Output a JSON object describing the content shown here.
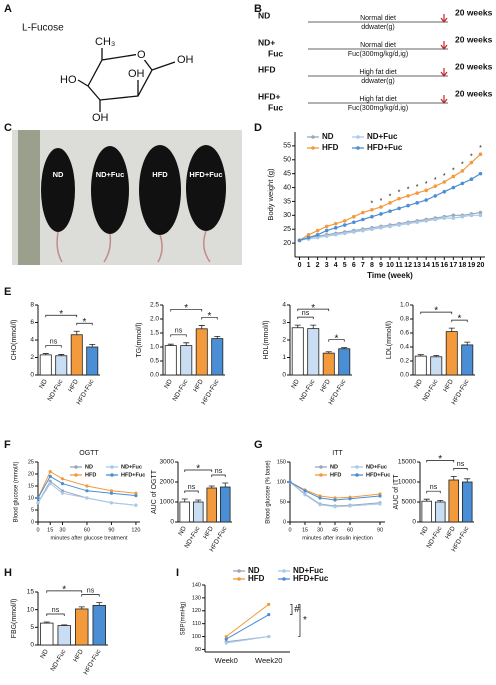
{
  "panel_labels": [
    "A",
    "B",
    "C",
    "D",
    "E",
    "F",
    "G",
    "H",
    "I"
  ],
  "panel_a": {
    "title": "L-Fucose",
    "atoms": [
      "CH₃",
      "O",
      "OH",
      "HO",
      "OH",
      "OH"
    ]
  },
  "panel_b": {
    "rows": [
      {
        "group": [
          "ND"
        ],
        "diet": "Normal diet",
        "treatment": "ddwater(g)",
        "duration": "20 weeks"
      },
      {
        "group": [
          "ND+",
          "Fuc"
        ],
        "diet": "Normal diet",
        "treatment": "Fuc(300mg/kg/d,ig)",
        "duration": "20 weeks"
      },
      {
        "group": [
          "HFD"
        ],
        "diet": "High fat diet",
        "treatment": "ddwater(g)",
        "duration": "20 weeks"
      },
      {
        "group": [
          "HFD+",
          "Fuc"
        ],
        "diet": "High fat diet",
        "treatment": "Fuc(300mg/kg/d,ig)",
        "duration": "20 weeks"
      }
    ]
  },
  "panel_c": {
    "labels": [
      "ND",
      "ND+Fuc",
      "HFD",
      "HFD+Fuc"
    ]
  },
  "chart_data": [
    {
      "type": "line",
      "xlabel": "Time (week)",
      "ylabel": "Body weight (g)",
      "legend": "top-left",
      "x": [
        0,
        1,
        2,
        3,
        4,
        5,
        6,
        7,
        8,
        9,
        10,
        11,
        12,
        13,
        14,
        15,
        16,
        17,
        18,
        19,
        20
      ],
      "xlim": [
        -0.5,
        20.5
      ],
      "xticks": [
        0,
        1,
        2,
        3,
        4,
        5,
        6,
        7,
        8,
        9,
        10,
        11,
        12,
        13,
        14,
        15,
        16,
        17,
        18,
        19,
        20
      ],
      "ylim": [
        15,
        60
      ],
      "yticks": [
        20,
        25,
        30,
        35,
        40,
        45,
        50,
        55
      ],
      "series": [
        {
          "name": "ND",
          "color": "#9aa7bb",
          "values": [
            21,
            22,
            22.5,
            23,
            23.5,
            24,
            24.5,
            25,
            25.5,
            26,
            26.5,
            27,
            27.5,
            28,
            28.5,
            29,
            29.5,
            30,
            30,
            30.5,
            31
          ]
        },
        {
          "name": "ND+Fuc",
          "color": "#a9c9ea",
          "values": [
            21,
            21.5,
            22,
            22.5,
            23,
            23.5,
            24,
            24.5,
            25,
            25.5,
            26,
            26.5,
            27,
            27.5,
            28,
            28.5,
            29,
            29,
            29.5,
            30,
            30
          ]
        },
        {
          "name": "HFD",
          "color": "#f39a3c",
          "values": [
            21,
            23,
            24.5,
            26,
            27,
            28,
            29.5,
            31,
            32,
            33,
            34.5,
            36,
            37,
            38,
            39,
            40.5,
            42,
            44,
            46,
            49,
            52
          ]
        },
        {
          "name": "HFD+Fuc",
          "color": "#4a8fd6",
          "values": [
            21,
            22,
            23,
            24.5,
            25.5,
            26.5,
            27.5,
            28.5,
            29.5,
            30.5,
            31.5,
            32.5,
            33.5,
            34.5,
            35.5,
            37,
            38.5,
            40,
            41.5,
            43,
            45
          ]
        }
      ],
      "annotations": [
        {
          "text": "*",
          "x": 8
        },
        {
          "text": "*",
          "x": 9
        },
        {
          "text": "*",
          "x": 10
        },
        {
          "text": "*",
          "x": 11
        },
        {
          "text": "*",
          "x": 12
        },
        {
          "text": "*",
          "x": 13
        },
        {
          "text": "*",
          "x": 14
        },
        {
          "text": "*",
          "x": 15
        },
        {
          "text": "*",
          "x": 16
        },
        {
          "text": "*",
          "x": 17
        },
        {
          "text": "*",
          "x": 18
        },
        {
          "text": "*",
          "x": 19
        },
        {
          "text": "*",
          "x": 20
        }
      ]
    },
    {
      "type": "bar",
      "ylabel": "CHO(mmol/l)",
      "categories": [
        "ND",
        "ND+Fuc",
        "HFD",
        "HFD+Fuc"
      ],
      "values": [
        2.3,
        2.2,
        4.6,
        3.2
      ],
      "errors": [
        0.15,
        0.15,
        0.4,
        0.3
      ],
      "colors": [
        "#ffffff",
        "#c9ddf3",
        "#f39a3c",
        "#4a8fd6"
      ],
      "ylim": [
        0,
        8
      ],
      "yticks": [
        0,
        2,
        4,
        6,
        8
      ],
      "comparisons": [
        {
          "label": "ns",
          "from": 0,
          "to": 1
        },
        {
          "label": "*",
          "from": 0,
          "to": 2
        },
        {
          "label": "*",
          "from": 2,
          "to": 3
        }
      ]
    },
    {
      "type": "bar",
      "ylabel": "TG(mmol/l)",
      "categories": [
        "ND",
        "ND+Fuc",
        "HFD",
        "HFD+Fuc"
      ],
      "values": [
        1.05,
        1.05,
        1.65,
        1.3
      ],
      "errors": [
        0.05,
        0.1,
        0.12,
        0.08
      ],
      "colors": [
        "#ffffff",
        "#c9ddf3",
        "#f39a3c",
        "#4a8fd6"
      ],
      "ylim": [
        0,
        2.5
      ],
      "yticks": [
        {
          "value": 0,
          "label": "0.0"
        },
        0.5,
        {
          "value": 1,
          "label": "1.0"
        },
        1.5,
        {
          "value": 2,
          "label": "2.0"
        },
        2.5
      ],
      "comparisons": [
        {
          "label": "ns",
          "from": 0,
          "to": 1
        },
        {
          "label": "*",
          "from": 0,
          "to": 2
        },
        {
          "label": "*",
          "from": 2,
          "to": 3
        }
      ]
    },
    {
      "type": "bar",
      "ylabel": "HDL(mmol/l)",
      "categories": [
        "ND",
        "ND+Fuc",
        "HFD",
        "HFD+Fuc"
      ],
      "values": [
        2.7,
        2.65,
        1.25,
        1.5
      ],
      "errors": [
        0.15,
        0.2,
        0.08,
        0.06
      ],
      "colors": [
        "#ffffff",
        "#c9ddf3",
        "#f39a3c",
        "#4a8fd6"
      ],
      "ylim": [
        0,
        4
      ],
      "yticks": [
        0,
        1,
        2,
        3,
        4
      ],
      "comparisons": [
        {
          "label": "ns",
          "from": 0,
          "to": 1
        },
        {
          "label": "*",
          "from": 0,
          "to": 2
        },
        {
          "label": "*",
          "from": 2,
          "to": 3
        }
      ]
    },
    {
      "type": "bar",
      "ylabel": "LDL(mmol/l)",
      "categories": [
        "ND",
        "ND+Fuc",
        "HFD",
        "HFD+Fuc"
      ],
      "values": [
        0.27,
        0.26,
        0.62,
        0.43
      ],
      "errors": [
        0.02,
        0.02,
        0.05,
        0.04
      ],
      "colors": [
        "#ffffff",
        "#c9ddf3",
        "#f39a3c",
        "#4a8fd6"
      ],
      "ylim": [
        0,
        1
      ],
      "yticks": [
        {
          "value": 0,
          "label": "0.0"
        },
        0.2,
        0.4,
        0.6,
        0.8,
        {
          "value": 1,
          "label": "1.0"
        }
      ],
      "comparisons": [
        {
          "label": "*",
          "from": 0,
          "to": 2
        },
        {
          "label": "*",
          "from": 2,
          "to": 3
        }
      ]
    },
    {
      "type": "line",
      "title": "OGTT",
      "xlabel": "minutes after glucose treatment",
      "ylabel": "Blood glucose (mmol/l)",
      "legend": "top-right",
      "x": [
        0,
        15,
        30,
        60,
        90,
        120
      ],
      "xlim": [
        0,
        125
      ],
      "xticks": [
        0,
        15,
        30,
        60,
        90,
        120
      ],
      "ylim": [
        0,
        25
      ],
      "yticks": [
        0,
        5,
        10,
        15,
        20,
        25
      ],
      "series": [
        {
          "name": "ND",
          "color": "#9aa7bb",
          "values": [
            8,
            17,
            13,
            10,
            8,
            7
          ]
        },
        {
          "name": "ND+Fuc",
          "color": "#a9c9ea",
          "values": [
            8,
            16,
            12,
            10,
            8,
            7
          ]
        },
        {
          "name": "HFD",
          "color": "#f39a3c",
          "values": [
            10,
            21,
            18,
            15,
            13,
            12
          ]
        },
        {
          "name": "HFD+Fuc",
          "color": "#4a8fd6",
          "values": [
            10,
            19,
            16,
            13,
            12,
            11
          ]
        }
      ]
    },
    {
      "type": "bar",
      "ylabel": "AUC of OGTT",
      "categories": [
        "ND",
        "ND+Fuc",
        "HFD",
        "HFD+Fuc"
      ],
      "values": [
        1000,
        1000,
        1700,
        1750
      ],
      "errors": [
        150,
        100,
        100,
        200
      ],
      "colors": [
        "#ffffff",
        "#c9ddf3",
        "#f39a3c",
        "#4a8fd6"
      ],
      "ylim": [
        0,
        3000
      ],
      "yticks": [
        0,
        1000,
        2000,
        3000
      ],
      "comparisons": [
        {
          "label": "ns",
          "from": 0,
          "to": 1
        },
        {
          "label": "*",
          "from": 0,
          "to": 2
        },
        {
          "label": "ns",
          "from": 2,
          "to": 3
        }
      ]
    },
    {
      "type": "line",
      "title": "ITT",
      "xlabel": "minutes after insulin injection",
      "ylabel": "Blood glucose (% base)",
      "legend": "top-right",
      "x": [
        0,
        15,
        30,
        45,
        60,
        90
      ],
      "xlim": [
        0,
        95
      ],
      "xticks": [
        0,
        15,
        30,
        45,
        60,
        90
      ],
      "ylim": [
        0,
        150
      ],
      "yticks": [
        0,
        50,
        100,
        150
      ],
      "series": [
        {
          "name": "ND",
          "color": "#9aa7bb",
          "values": [
            100,
            70,
            45,
            40,
            42,
            48
          ]
        },
        {
          "name": "ND+Fuc",
          "color": "#a9c9ea",
          "values": [
            100,
            68,
            43,
            38,
            40,
            45
          ]
        },
        {
          "name": "HFD",
          "color": "#f39a3c",
          "values": [
            100,
            80,
            65,
            60,
            62,
            70
          ]
        },
        {
          "name": "HFD+Fuc",
          "color": "#4a8fd6",
          "values": [
            100,
            78,
            60,
            55,
            58,
            65
          ]
        }
      ]
    },
    {
      "type": "bar",
      "ylabel": "AUC of ITT",
      "categories": [
        "ND",
        "ND+Fuc",
        "HFD",
        "HFD+Fuc"
      ],
      "values": [
        5200,
        5000,
        10500,
        10000
      ],
      "errors": [
        500,
        400,
        900,
        800
      ],
      "colors": [
        "#ffffff",
        "#c9ddf3",
        "#f39a3c",
        "#4a8fd6"
      ],
      "ylim": [
        0,
        15000
      ],
      "yticks": [
        0,
        5000,
        10000,
        15000
      ],
      "comparisons": [
        {
          "label": "ns",
          "from": 0,
          "to": 1
        },
        {
          "label": "*",
          "from": 0,
          "to": 2
        },
        {
          "label": "ns",
          "from": 2,
          "to": 3
        }
      ]
    },
    {
      "type": "bar",
      "ylabel": "FBG(mmol/l)",
      "categories": [
        "ND",
        "ND+Fuc",
        "HFD",
        "HFD+Fuc"
      ],
      "values": [
        6.2,
        5.5,
        10.2,
        11.2
      ],
      "errors": [
        0.3,
        0.2,
        0.6,
        0.8
      ],
      "colors": [
        "#ffffff",
        "#c9ddf3",
        "#f39a3c",
        "#4a8fd6"
      ],
      "ylim": [
        0,
        15
      ],
      "yticks": [
        0,
        5,
        10,
        15
      ],
      "comparisons": [
        {
          "label": "ns",
          "from": 0,
          "to": 1
        },
        {
          "label": "*",
          "from": 0,
          "to": 2
        },
        {
          "label": "ns",
          "from": 2,
          "to": 3
        }
      ]
    },
    {
      "type": "line",
      "ylabel": "SBP(mmHg)",
      "legend": "top",
      "categories": [
        "Week0",
        "Week20"
      ],
      "ylim": [
        88,
        140
      ],
      "yticks": [
        90,
        100,
        110,
        120,
        130,
        140
      ],
      "series": [
        {
          "name": "ND",
          "color": "#9aa7bb",
          "values": [
            96,
            100
          ]
        },
        {
          "name": "ND+Fuc",
          "color": "#a9c9ea",
          "values": [
            95,
            100
          ]
        },
        {
          "name": "HFD",
          "color": "#f39a3c",
          "values": [
            100,
            125
          ]
        },
        {
          "name": "HFD+Fuc",
          "color": "#4a8fd6",
          "values": [
            98,
            117
          ]
        }
      ],
      "annotations": [
        {
          "text": "#",
          "series": [
            2,
            3
          ]
        },
        {
          "text": "*",
          "series": [
            2,
            0
          ]
        }
      ]
    }
  ]
}
